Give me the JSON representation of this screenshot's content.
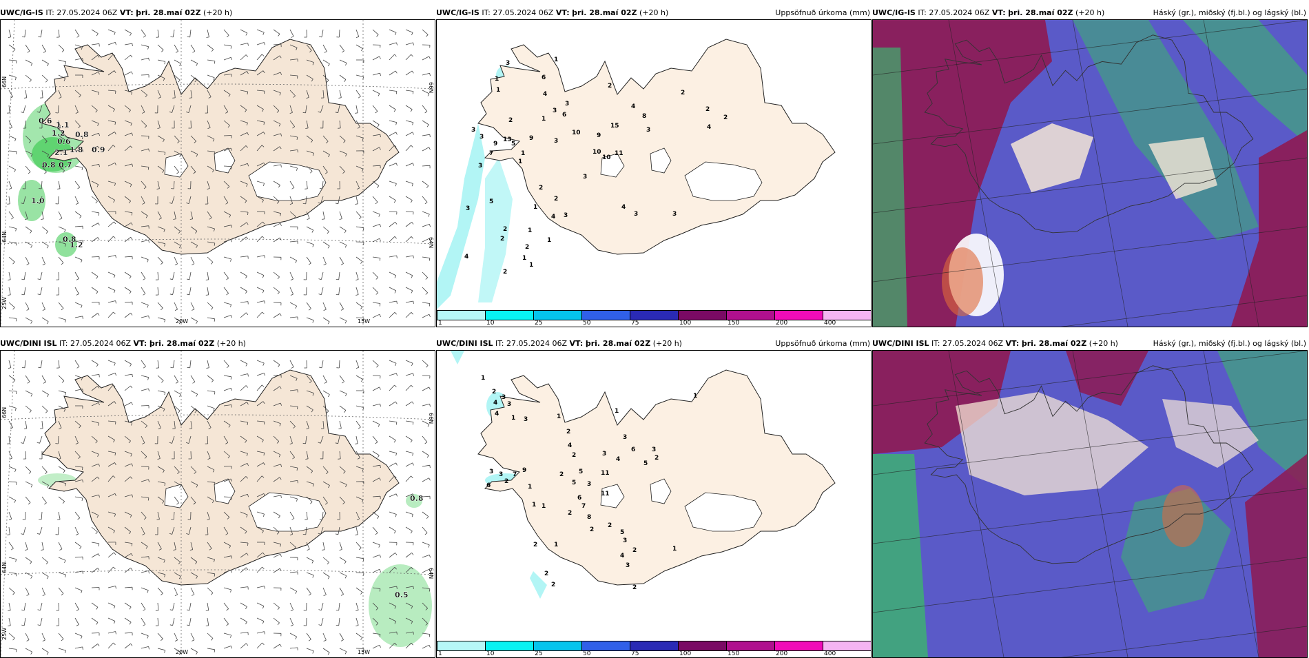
{
  "legend_colors": [
    "#b6f7f7",
    "#08f2f2",
    "#05c4ec",
    "#3060e8",
    "#2a2ab5",
    "#7a0a64",
    "#b0108e",
    "#f00cb8",
    "#f5b4f2"
  ],
  "legend_ticks": [
    "1",
    "10",
    "25",
    "50",
    "75",
    "100",
    "150",
    "200",
    "400"
  ],
  "colors": {
    "land": "#f5e6d6",
    "land_light": "#fcf0e3",
    "precip_green": "#34c84a",
    "precip_cyan": "#b2f5f5",
    "cloud_high": "#8e1a52",
    "cloud_mid": "#5a5ac8",
    "cloud_low": "#3cb46e"
  },
  "rows": [
    {
      "model": "UWC/IG-IS",
      "it_text": "IT: 27.05.2024 06Z",
      "vt_label": "VT:",
      "vt_value": "þri. 28.maí 02Z",
      "lead": "(+20 h)",
      "precip_title": "Uppsöfnuð úrkoma (mm)",
      "cloud_title": "Háský (gr.), miðský (fj.bl.) og lágský (bl.)",
      "wind_labels": [
        {
          "t": "0.6",
          "x": 55,
          "y": 150
        },
        {
          "t": "1.1",
          "x": 80,
          "y": 156
        },
        {
          "t": "1.2",
          "x": 74,
          "y": 168
        },
        {
          "t": "0.8",
          "x": 108,
          "y": 170
        },
        {
          "t": "0.6",
          "x": 82,
          "y": 180
        },
        {
          "t": "0.9",
          "x": 132,
          "y": 192
        },
        {
          "t": "2.1",
          "x": 78,
          "y": 196
        },
        {
          "t": "1.8",
          "x": 100,
          "y": 192
        },
        {
          "t": "0.8",
          "x": 60,
          "y": 214
        },
        {
          "t": "0.7",
          "x": 84,
          "y": 214
        },
        {
          "t": "1.0",
          "x": 44,
          "y": 266
        },
        {
          "t": "0.8",
          "x": 90,
          "y": 322
        },
        {
          "t": "1.2",
          "x": 100,
          "y": 330
        }
      ],
      "precip_labels": [
        {
          "t": "1",
          "x": 170,
          "y": 60
        },
        {
          "t": "3",
          "x": 100,
          "y": 65
        },
        {
          "t": "6",
          "x": 152,
          "y": 86
        },
        {
          "t": "1",
          "x": 84,
          "y": 88
        },
        {
          "t": "2",
          "x": 248,
          "y": 98
        },
        {
          "t": "1",
          "x": 86,
          "y": 104
        },
        {
          "t": "2",
          "x": 354,
          "y": 108
        },
        {
          "t": "4",
          "x": 154,
          "y": 110
        },
        {
          "t": "3",
          "x": 186,
          "y": 124
        },
        {
          "t": "4",
          "x": 282,
          "y": 128
        },
        {
          "t": "3",
          "x": 168,
          "y": 134
        },
        {
          "t": "6",
          "x": 182,
          "y": 140
        },
        {
          "t": "2",
          "x": 390,
          "y": 132
        },
        {
          "t": "8",
          "x": 298,
          "y": 142
        },
        {
          "t": "2",
          "x": 416,
          "y": 144
        },
        {
          "t": "2",
          "x": 104,
          "y": 148
        },
        {
          "t": "1",
          "x": 152,
          "y": 146
        },
        {
          "t": "15",
          "x": 252,
          "y": 156
        },
        {
          "t": "4",
          "x": 392,
          "y": 158
        },
        {
          "t": "3",
          "x": 50,
          "y": 162
        },
        {
          "t": "3",
          "x": 304,
          "y": 162
        },
        {
          "t": "3",
          "x": 62,
          "y": 172
        },
        {
          "t": "10",
          "x": 196,
          "y": 166
        },
        {
          "t": "13",
          "x": 96,
          "y": 176
        },
        {
          "t": "9",
          "x": 82,
          "y": 182
        },
        {
          "t": "9",
          "x": 134,
          "y": 174
        },
        {
          "t": "5",
          "x": 108,
          "y": 182
        },
        {
          "t": "3",
          "x": 170,
          "y": 178
        },
        {
          "t": "9",
          "x": 232,
          "y": 170
        },
        {
          "t": "7",
          "x": 76,
          "y": 196
        },
        {
          "t": "1",
          "x": 122,
          "y": 196
        },
        {
          "t": "10",
          "x": 226,
          "y": 194
        },
        {
          "t": "10",
          "x": 240,
          "y": 202
        },
        {
          "t": "11",
          "x": 258,
          "y": 196
        },
        {
          "t": "1",
          "x": 118,
          "y": 208
        },
        {
          "t": "3",
          "x": 60,
          "y": 214
        },
        {
          "t": "3",
          "x": 212,
          "y": 230
        },
        {
          "t": "2",
          "x": 148,
          "y": 246
        },
        {
          "t": "2",
          "x": 170,
          "y": 262
        },
        {
          "t": "1",
          "x": 140,
          "y": 274
        },
        {
          "t": "5",
          "x": 76,
          "y": 266
        },
        {
          "t": "4",
          "x": 268,
          "y": 274
        },
        {
          "t": "3",
          "x": 42,
          "y": 276
        },
        {
          "t": "3",
          "x": 286,
          "y": 284
        },
        {
          "t": "4",
          "x": 166,
          "y": 288
        },
        {
          "t": "3",
          "x": 184,
          "y": 286
        },
        {
          "t": "3",
          "x": 342,
          "y": 284
        },
        {
          "t": "2",
          "x": 96,
          "y": 306
        },
        {
          "t": "1",
          "x": 132,
          "y": 308
        },
        {
          "t": "2",
          "x": 92,
          "y": 320
        },
        {
          "t": "1",
          "x": 160,
          "y": 322
        },
        {
          "t": "2",
          "x": 128,
          "y": 332
        },
        {
          "t": "1",
          "x": 124,
          "y": 348
        },
        {
          "t": "4",
          "x": 40,
          "y": 346
        },
        {
          "t": "1",
          "x": 134,
          "y": 358
        },
        {
          "t": "2",
          "x": 96,
          "y": 368
        }
      ]
    },
    {
      "model": "UWC/DINI ISL",
      "it_text": "IT: 27.05.2024 06Z",
      "vt_label": "VT:",
      "vt_value": "þri. 28.maí 02Z",
      "lead": "(+20 h)",
      "precip_title": "Uppsöfnuð úrkoma (mm)",
      "cloud_title": "Háský (gr.), miðský (fj.bl.) og lágský (bl.)",
      "wind_labels": [
        {
          "t": "0.8",
          "x": 594,
          "y": 218
        },
        {
          "t": "0.5",
          "x": 572,
          "y": 358
        }
      ],
      "precip_labels": [
        {
          "t": "1",
          "x": 64,
          "y": 42
        },
        {
          "t": "2",
          "x": 80,
          "y": 62
        },
        {
          "t": "3",
          "x": 94,
          "y": 70
        },
        {
          "t": "4",
          "x": 82,
          "y": 78
        },
        {
          "t": "3",
          "x": 102,
          "y": 80
        },
        {
          "t": "1",
          "x": 372,
          "y": 68
        },
        {
          "t": "4",
          "x": 84,
          "y": 94
        },
        {
          "t": "1",
          "x": 108,
          "y": 100
        },
        {
          "t": "3",
          "x": 126,
          "y": 102
        },
        {
          "t": "1",
          "x": 258,
          "y": 90
        },
        {
          "t": "1",
          "x": 174,
          "y": 98
        },
        {
          "t": "3",
          "x": 270,
          "y": 128
        },
        {
          "t": "2",
          "x": 188,
          "y": 120
        },
        {
          "t": "4",
          "x": 190,
          "y": 140
        },
        {
          "t": "6",
          "x": 282,
          "y": 146
        },
        {
          "t": "3",
          "x": 312,
          "y": 146
        },
        {
          "t": "2",
          "x": 196,
          "y": 154
        },
        {
          "t": "3",
          "x": 240,
          "y": 152
        },
        {
          "t": "4",
          "x": 260,
          "y": 160
        },
        {
          "t": "2",
          "x": 316,
          "y": 158
        },
        {
          "t": "5",
          "x": 300,
          "y": 166
        },
        {
          "t": "3",
          "x": 76,
          "y": 178
        },
        {
          "t": "3",
          "x": 90,
          "y": 182
        },
        {
          "t": "7",
          "x": 110,
          "y": 182
        },
        {
          "t": "9",
          "x": 124,
          "y": 176
        },
        {
          "t": "2",
          "x": 178,
          "y": 182
        },
        {
          "t": "5",
          "x": 206,
          "y": 178
        },
        {
          "t": "11",
          "x": 238,
          "y": 180
        },
        {
          "t": "2",
          "x": 98,
          "y": 192
        },
        {
          "t": "6",
          "x": 72,
          "y": 198
        },
        {
          "t": "5",
          "x": 196,
          "y": 194
        },
        {
          "t": "3",
          "x": 218,
          "y": 196
        },
        {
          "t": "1",
          "x": 132,
          "y": 200
        },
        {
          "t": "6",
          "x": 204,
          "y": 216
        },
        {
          "t": "11",
          "x": 238,
          "y": 210
        },
        {
          "t": "1",
          "x": 138,
          "y": 226
        },
        {
          "t": "7",
          "x": 210,
          "y": 228
        },
        {
          "t": "1",
          "x": 152,
          "y": 228
        },
        {
          "t": "2",
          "x": 190,
          "y": 238
        },
        {
          "t": "8",
          "x": 218,
          "y": 244
        },
        {
          "t": "2",
          "x": 248,
          "y": 256
        },
        {
          "t": "2",
          "x": 222,
          "y": 262
        },
        {
          "t": "5",
          "x": 266,
          "y": 266
        },
        {
          "t": "3",
          "x": 270,
          "y": 278
        },
        {
          "t": "2",
          "x": 140,
          "y": 284
        },
        {
          "t": "1",
          "x": 170,
          "y": 284
        },
        {
          "t": "2",
          "x": 284,
          "y": 292
        },
        {
          "t": "1",
          "x": 342,
          "y": 290
        },
        {
          "t": "4",
          "x": 266,
          "y": 300
        },
        {
          "t": "3",
          "x": 274,
          "y": 314
        },
        {
          "t": "2",
          "x": 156,
          "y": 326
        },
        {
          "t": "2",
          "x": 166,
          "y": 342
        },
        {
          "t": "2",
          "x": 284,
          "y": 346
        }
      ]
    }
  ],
  "axes": {
    "lat_ticks": [
      "66N",
      "64N"
    ],
    "lon_ticks": [
      "25W",
      "20W",
      "15W"
    ]
  }
}
